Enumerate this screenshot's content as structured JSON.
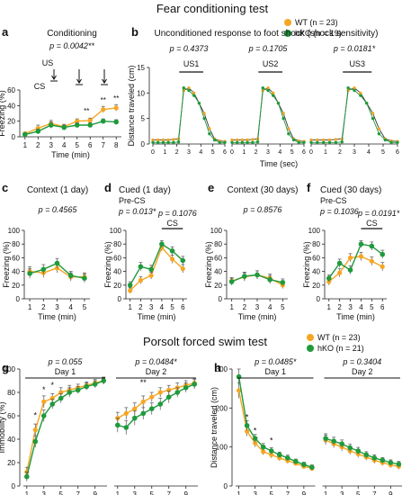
{
  "figure": {
    "section1_title": "Fear conditioning test",
    "section2_title": "Porsolt forced swim test",
    "legend1": [
      {
        "label": "WT (n = 23)",
        "color": "#f5a623"
      },
      {
        "label": "hKO (n = 19)",
        "color": "#1f9a3c"
      }
    ],
    "legend2": [
      {
        "label": "WT (n = 23)",
        "color": "#f5a623"
      },
      {
        "label": "hKO (n = 21)",
        "color": "#1f9a3c"
      }
    ]
  },
  "chart_data": [
    {
      "id": "a",
      "panel_label": "a",
      "type": "line",
      "title": "Conditioning",
      "xlabel": "Time (min)",
      "ylabel": "Freezing (%)",
      "ylim": [
        0,
        60
      ],
      "yticks": [
        0,
        20,
        40,
        60
      ],
      "xlim": [
        0.6,
        8.4
      ],
      "xticks": [
        1,
        2,
        3,
        4,
        5,
        6,
        7,
        8
      ],
      "stats": [
        "p = 0.0042**"
      ],
      "annotations": [
        "US",
        "CS",
        "**",
        "**",
        "**"
      ],
      "x": [
        1,
        2,
        3,
        4,
        5,
        6,
        7,
        8
      ],
      "series": [
        {
          "name": "WT",
          "color": "#f5a623",
          "values": [
            4,
            11,
            17,
            13,
            20,
            21,
            35,
            37
          ],
          "err": [
            2,
            4,
            4,
            3,
            3,
            3,
            4,
            4
          ]
        },
        {
          "name": "hKO",
          "color": "#1f9a3c",
          "values": [
            3,
            7,
            15,
            12,
            15,
            15,
            20,
            19
          ],
          "err": [
            2,
            3,
            4,
            3,
            3,
            3,
            3,
            3
          ]
        }
      ]
    },
    {
      "id": "b",
      "panel_label": "b",
      "type": "line",
      "title": "Unconditioned response to foot shock (shock sensitivity)",
      "xlabel": "Time (sec)",
      "ylabel": "Distance traveled (cm)",
      "ylim": [
        0,
        15
      ],
      "yticks": [
        0,
        5,
        10,
        15
      ],
      "sub": [
        {
          "label": "US1",
          "stat": "p = 0.4373"
        },
        {
          "label": "US2",
          "stat": "p = 0.1705"
        },
        {
          "label": "US3",
          "stat": "p = 0.0181*"
        }
      ],
      "xticks": [
        0,
        1,
        2,
        3,
        4,
        5,
        6
      ],
      "series": [
        {
          "name": "WT",
          "color": "#f5a623",
          "values": [
            0.8,
            0.8,
            0.8,
            0.8,
            0.9,
            1.0,
            10.5,
            11,
            10,
            8,
            6,
            3,
            1,
            0.6,
            0.5
          ]
        },
        {
          "name": "hKO",
          "color": "#1f9a3c",
          "values": [
            0.3,
            0.3,
            0.3,
            0.3,
            0.3,
            0.4,
            11,
            10.5,
            9.5,
            8,
            5,
            2,
            0.8,
            0.3,
            0.3
          ]
        }
      ]
    },
    {
      "id": "c",
      "panel_label": "c",
      "type": "line",
      "title": "Context (1 day)",
      "xlabel": "Time (min)",
      "ylabel": "Freezing (%)",
      "ylim": [
        0,
        100
      ],
      "yticks": [
        0,
        20,
        40,
        60,
        80,
        100
      ],
      "xlim": [
        0.6,
        5.4
      ],
      "xticks": [
        1,
        2,
        3,
        4,
        5
      ],
      "stats": [
        "p = 0.4565"
      ],
      "x": [
        1,
        2,
        3,
        4,
        5
      ],
      "series": [
        {
          "name": "WT",
          "color": "#f5a623",
          "values": [
            40,
            38,
            45,
            32,
            32
          ],
          "err": [
            7,
            7,
            7,
            6,
            6
          ]
        },
        {
          "name": "hKO",
          "color": "#1f9a3c",
          "values": [
            37,
            43,
            52,
            34,
            30
          ],
          "err": [
            7,
            7,
            7,
            6,
            6
          ]
        }
      ]
    },
    {
      "id": "d",
      "panel_label": "d",
      "type": "line",
      "title": "Cued (1 day)",
      "xlabel": "Time (min)",
      "ylabel": "Freezing (%)",
      "ylim": [
        0,
        100
      ],
      "yticks": [
        0,
        20,
        40,
        60,
        80,
        100
      ],
      "xlim": [
        0.6,
        6.4
      ],
      "xticks": [
        1,
        2,
        3,
        4,
        5,
        6
      ],
      "stats": [
        "Pre-CS",
        "p = 0.013*",
        "p = 0.1076"
      ],
      "annotations": [
        "CS"
      ],
      "x": [
        1,
        2,
        3,
        4,
        5,
        6
      ],
      "series": [
        {
          "name": "WT",
          "color": "#f5a623",
          "values": [
            12,
            27,
            34,
            75,
            58,
            44
          ],
          "err": [
            4,
            5,
            5,
            5,
            6,
            6
          ]
        },
        {
          "name": "hKO",
          "color": "#1f9a3c",
          "values": [
            20,
            47,
            43,
            80,
            70,
            56
          ],
          "err": [
            5,
            6,
            6,
            5,
            6,
            6
          ]
        }
      ]
    },
    {
      "id": "e",
      "panel_label": "e",
      "type": "line",
      "title": "Context (30 days)",
      "xlabel": "Time (min)",
      "ylabel": "Freezing (%)",
      "ylim": [
        0,
        100
      ],
      "yticks": [
        0,
        20,
        40,
        60,
        80,
        100
      ],
      "xlim": [
        0.6,
        5.4
      ],
      "xticks": [
        1,
        2,
        3,
        4,
        5
      ],
      "stats": [
        "p = 0.8576"
      ],
      "x": [
        1,
        2,
        3,
        4,
        5
      ],
      "series": [
        {
          "name": "WT",
          "color": "#f5a623",
          "values": [
            26,
            32,
            35,
            30,
            20
          ],
          "err": [
            5,
            6,
            6,
            6,
            5
          ]
        },
        {
          "name": "hKO",
          "color": "#1f9a3c",
          "values": [
            25,
            33,
            35,
            28,
            24
          ],
          "err": [
            5,
            6,
            6,
            6,
            5
          ]
        }
      ]
    },
    {
      "id": "f",
      "panel_label": "f",
      "type": "line",
      "title": "Cued (30 days)",
      "xlabel": "Time (min)",
      "ylabel": "Freezing (%)",
      "ylim": [
        0,
        100
      ],
      "yticks": [
        0,
        20,
        40,
        60,
        80,
        100
      ],
      "xlim": [
        0.6,
        6.4
      ],
      "xticks": [
        1,
        2,
        3,
        4,
        5,
        6
      ],
      "stats": [
        "Pre-CS",
        "p = 0.1036",
        "p = 0.0191*"
      ],
      "annotations": [
        "CS"
      ],
      "x": [
        1,
        2,
        3,
        4,
        5,
        6
      ],
      "series": [
        {
          "name": "WT",
          "color": "#f5a623",
          "values": [
            25,
            38,
            60,
            62,
            55,
            47
          ],
          "err": [
            5,
            6,
            6,
            6,
            6,
            6
          ]
        },
        {
          "name": "hKO",
          "color": "#1f9a3c",
          "values": [
            30,
            52,
            42,
            80,
            77,
            65
          ],
          "err": [
            5,
            6,
            6,
            5,
            6,
            6
          ]
        }
      ]
    },
    {
      "id": "g",
      "panel_label": "g",
      "type": "line",
      "xlabel": "",
      "ylabel": "Immobility (%)",
      "ylim": [
        0,
        100
      ],
      "yticks": [
        0,
        20,
        40,
        60,
        80,
        100
      ],
      "stats": [
        "p = 0.055",
        "Day 1",
        "p = 0.0484*",
        "Day 2"
      ],
      "annotations": [
        "*",
        "*",
        "*",
        "**"
      ],
      "xticks": [
        1,
        3,
        5,
        7,
        9
      ],
      "day1": {
        "x": [
          1,
          2,
          3,
          4,
          5,
          6,
          7,
          8,
          9,
          10
        ],
        "series": [
          {
            "name": "WT",
            "color": "#f5a623",
            "values": [
              12,
              48,
              72,
              75,
              80,
              82,
              84,
              86,
              88,
              90
            ],
            "err": [
              4,
              5,
              5,
              4,
              4,
              4,
              3,
              3,
              3,
              3
            ]
          },
          {
            "name": "hKO",
            "color": "#1f9a3c",
            "values": [
              8,
              38,
              60,
              70,
              75,
              80,
              82,
              85,
              87,
              90
            ],
            "err": [
              4,
              5,
              5,
              4,
              4,
              4,
              3,
              3,
              3,
              3
            ]
          }
        ]
      },
      "day2": {
        "x": [
          1,
          2,
          3,
          4,
          5,
          6,
          7,
          8,
          9,
          10
        ],
        "series": [
          {
            "name": "WT",
            "color": "#f5a623",
            "values": [
              58,
              62,
              66,
              72,
              76,
              80,
              82,
              84,
              86,
              88
            ],
            "err": [
              5,
              5,
              5,
              5,
              4,
              4,
              4,
              4,
              4,
              4
            ]
          },
          {
            "name": "hKO",
            "color": "#1f9a3c",
            "values": [
              52,
              50,
              58,
              62,
              66,
              70,
              76,
              80,
              84,
              87
            ],
            "err": [
              6,
              6,
              6,
              5,
              5,
              5,
              5,
              4,
              4,
              4
            ]
          }
        ]
      }
    },
    {
      "id": "h",
      "panel_label": "h",
      "type": "line",
      "xlabel": "",
      "ylabel": "Distance traveled (cm)",
      "ylim": [
        0,
        300
      ],
      "yticks": [
        0,
        100,
        200,
        300
      ],
      "stats": [
        "p = 0.0485*",
        "Day 1",
        "p = 0.3404",
        "Day 2"
      ],
      "annotations": [
        "*",
        "*",
        "*"
      ],
      "xticks": [
        1,
        3,
        5,
        7,
        9
      ],
      "day1": {
        "x": [
          1,
          2,
          3,
          4,
          5,
          6,
          7,
          8,
          9,
          10
        ],
        "series": [
          {
            "name": "WT",
            "color": "#f5a623",
            "values": [
              245,
              140,
              110,
              88,
              80,
              72,
              65,
              58,
              50,
              45
            ],
            "err": [
              20,
              12,
              10,
              8,
              8,
              7,
              7,
              6,
              6,
              6
            ]
          },
          {
            "name": "hKO",
            "color": "#1f9a3c",
            "values": [
              280,
              155,
              122,
              100,
              90,
              80,
              72,
              63,
              55,
              48
            ],
            "err": [
              20,
              12,
              10,
              9,
              8,
              7,
              7,
              6,
              6,
              6
            ]
          }
        ]
      },
      "day2": {
        "x": [
          1,
          2,
          3,
          4,
          5,
          6,
          7,
          8,
          9,
          10
        ],
        "series": [
          {
            "name": "WT",
            "color": "#f5a623",
            "values": [
              118,
              108,
              100,
              90,
              82,
              74,
              66,
              60,
              54,
              50
            ],
            "err": [
              12,
              10,
              10,
              9,
              9,
              8,
              8,
              7,
              7,
              7
            ]
          },
          {
            "name": "hKO",
            "color": "#1f9a3c",
            "values": [
              122,
              115,
              108,
              98,
              90,
              80,
              72,
              66,
              60,
              56
            ],
            "err": [
              12,
              10,
              10,
              9,
              9,
              8,
              8,
              7,
              7,
              7
            ]
          }
        ]
      }
    }
  ]
}
